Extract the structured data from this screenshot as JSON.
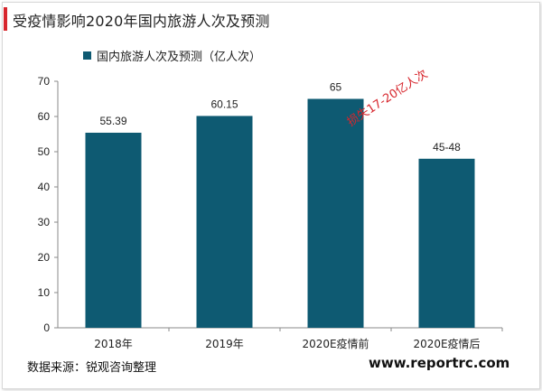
{
  "header": {
    "title": "受疫情影响2020年国内旅游人次及预测"
  },
  "footer": {
    "source": "数据来源：锐观咨询整理",
    "watermark": "www.reportrc.com"
  },
  "colors": {
    "bar": "#0e5a72",
    "accent": "#d7262d"
  },
  "chart_data": {
    "type": "bar",
    "categories": [
      "2018年",
      "2019年",
      "2020E疫情前",
      "2020E疫情后"
    ],
    "series": [
      {
        "name": "国内旅游人次及预测（亿人次）",
        "values": [
          55.39,
          60.15,
          65,
          48
        ]
      }
    ],
    "data_labels": [
      "55.39",
      "60.15",
      "65",
      "45-48"
    ],
    "yticks": [
      "0",
      "10",
      "20",
      "30",
      "40",
      "50",
      "60",
      "70"
    ],
    "ylim": [
      0,
      70
    ],
    "annotation": "损失17-20亿人次",
    "legend": "top-left",
    "grid": false
  }
}
